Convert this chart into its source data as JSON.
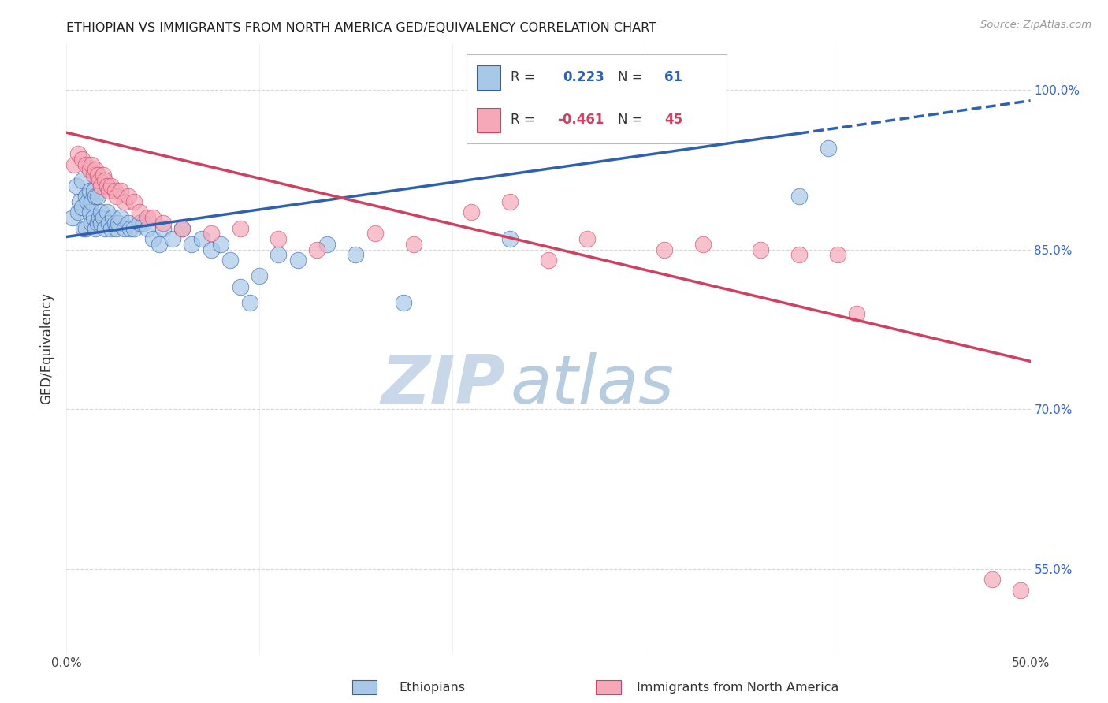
{
  "title": "ETHIOPIAN VS IMMIGRANTS FROM NORTH AMERICA GED/EQUIVALENCY CORRELATION CHART",
  "source": "Source: ZipAtlas.com",
  "ylabel": "GED/Equivalency",
  "x_min": 0.0,
  "x_max": 0.5,
  "y_min": 0.47,
  "y_max": 1.045,
  "y_ticks": [
    0.55,
    0.7,
    0.85,
    1.0
  ],
  "y_tick_labels": [
    "55.0%",
    "70.0%",
    "85.0%",
    "100.0%"
  ],
  "x_ticks": [
    0.0,
    0.1,
    0.2,
    0.3,
    0.4,
    0.5
  ],
  "x_tick_labels": [
    "0.0%",
    "",
    "",
    "",
    "",
    "50.0%"
  ],
  "r_ethiopian": 0.223,
  "n_ethiopian": 61,
  "r_north_america": -0.461,
  "n_north_america": 45,
  "ethiopian_color": "#a8c8e8",
  "north_america_color": "#f4a8b8",
  "trend_line_ethiopian_color": "#3060b0",
  "trend_line_north_america_color": "#d04060",
  "background_color": "#ffffff",
  "watermark_zip_color": "#c8d8e8",
  "watermark_atlas_color": "#b8cce0",
  "ethiopian_points_x": [
    0.003,
    0.005,
    0.006,
    0.007,
    0.008,
    0.008,
    0.009,
    0.01,
    0.01,
    0.011,
    0.012,
    0.012,
    0.013,
    0.013,
    0.014,
    0.014,
    0.015,
    0.015,
    0.016,
    0.016,
    0.017,
    0.018,
    0.018,
    0.019,
    0.02,
    0.021,
    0.022,
    0.023,
    0.024,
    0.025,
    0.026,
    0.027,
    0.028,
    0.03,
    0.032,
    0.033,
    0.035,
    0.038,
    0.04,
    0.042,
    0.045,
    0.048,
    0.05,
    0.055,
    0.06,
    0.065,
    0.07,
    0.075,
    0.08,
    0.085,
    0.09,
    0.095,
    0.1,
    0.11,
    0.12,
    0.135,
    0.15,
    0.175,
    0.23,
    0.38,
    0.395
  ],
  "ethiopian_points_y": [
    0.88,
    0.91,
    0.885,
    0.895,
    0.89,
    0.915,
    0.87,
    0.9,
    0.87,
    0.895,
    0.885,
    0.905,
    0.875,
    0.895,
    0.88,
    0.905,
    0.87,
    0.9,
    0.875,
    0.9,
    0.88,
    0.875,
    0.885,
    0.88,
    0.87,
    0.885,
    0.875,
    0.87,
    0.88,
    0.875,
    0.87,
    0.875,
    0.88,
    0.87,
    0.875,
    0.87,
    0.87,
    0.875,
    0.875,
    0.87,
    0.86,
    0.855,
    0.87,
    0.86,
    0.87,
    0.855,
    0.86,
    0.85,
    0.855,
    0.84,
    0.815,
    0.8,
    0.825,
    0.845,
    0.84,
    0.855,
    0.845,
    0.8,
    0.86,
    0.9,
    0.945
  ],
  "north_america_points_x": [
    0.004,
    0.006,
    0.008,
    0.01,
    0.012,
    0.013,
    0.014,
    0.015,
    0.016,
    0.017,
    0.018,
    0.019,
    0.02,
    0.021,
    0.022,
    0.023,
    0.025,
    0.026,
    0.028,
    0.03,
    0.032,
    0.035,
    0.038,
    0.042,
    0.045,
    0.05,
    0.06,
    0.075,
    0.09,
    0.11,
    0.13,
    0.16,
    0.18,
    0.21,
    0.23,
    0.25,
    0.27,
    0.31,
    0.33,
    0.36,
    0.38,
    0.4,
    0.41,
    0.48,
    0.495
  ],
  "north_america_points_y": [
    0.93,
    0.94,
    0.935,
    0.93,
    0.925,
    0.93,
    0.92,
    0.925,
    0.92,
    0.915,
    0.91,
    0.92,
    0.915,
    0.91,
    0.905,
    0.91,
    0.905,
    0.9,
    0.905,
    0.895,
    0.9,
    0.895,
    0.885,
    0.88,
    0.88,
    0.875,
    0.87,
    0.865,
    0.87,
    0.86,
    0.85,
    0.865,
    0.855,
    0.885,
    0.895,
    0.84,
    0.86,
    0.85,
    0.855,
    0.85,
    0.845,
    0.845,
    0.79,
    0.54,
    0.53
  ],
  "trend_eth_x0": 0.0,
  "trend_eth_x1": 0.5,
  "trend_eth_y0": 0.862,
  "trend_eth_y1": 0.99,
  "trend_eth_solid_end": 0.38,
  "trend_na_x0": 0.0,
  "trend_na_x1": 0.5,
  "trend_na_y0": 0.96,
  "trend_na_y1": 0.745
}
